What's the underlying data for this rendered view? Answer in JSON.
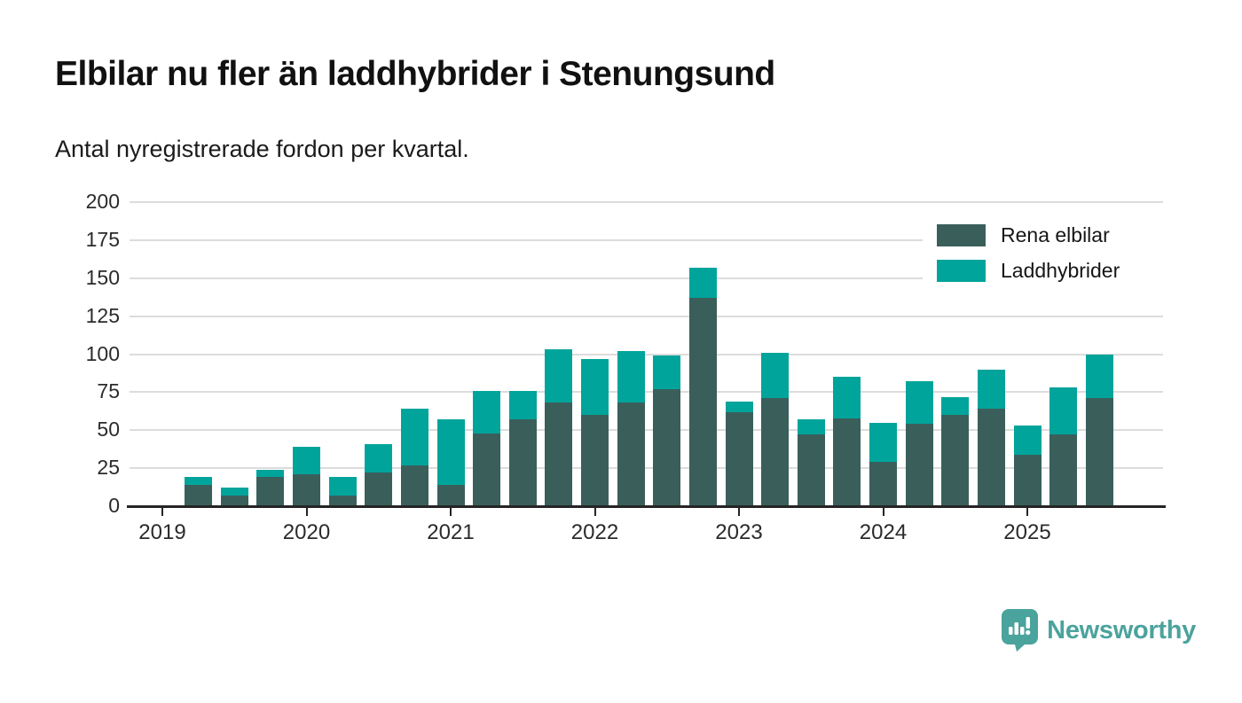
{
  "header": {
    "title": "Elbilar nu fler än laddhybrider i Stenungsund",
    "subtitle": "Antal nyregistrerade fordon per kvartal."
  },
  "legend": {
    "items": [
      {
        "label": "Rena elbilar",
        "color": "#3a5f5b"
      },
      {
        "label": "Laddhybrider",
        "color": "#00a49b"
      }
    ]
  },
  "footer": {
    "brand": "Newsworthy",
    "brand_color": "#4aa39c",
    "logo_icon": "speech-bubble-bar-chart-icon"
  },
  "chart_data": {
    "type": "bar",
    "stacked": true,
    "title": "Elbilar nu fler än laddhybrider i Stenungsund",
    "subtitle": "Antal nyregistrerade fordon per kvartal.",
    "xlabel": "",
    "ylabel": "",
    "ylim": [
      0,
      200
    ],
    "yticks": [
      0,
      25,
      50,
      75,
      100,
      125,
      150,
      175,
      200
    ],
    "xticks": [
      "2019",
      "2020",
      "2021",
      "2022",
      "2023",
      "2024",
      "2025"
    ],
    "grid": true,
    "legend_position": "top-right",
    "categories": [
      "2019 Q2",
      "2019 Q3",
      "2019 Q4",
      "2020 Q1",
      "2020 Q2",
      "2020 Q3",
      "2020 Q4",
      "2021 Q1",
      "2021 Q2",
      "2021 Q3",
      "2021 Q4",
      "2022 Q1",
      "2022 Q2",
      "2022 Q3",
      "2022 Q4",
      "2023 Q1",
      "2023 Q2",
      "2023 Q3",
      "2023 Q4",
      "2024 Q1",
      "2024 Q2",
      "2024 Q3",
      "2024 Q4",
      "2025 Q1",
      "2025 Q2",
      "2025 Q3"
    ],
    "series": [
      {
        "name": "Rena elbilar",
        "color": "#3a5f5b",
        "values": [
          14,
          7,
          19,
          21,
          7,
          22,
          27,
          14,
          48,
          57,
          68,
          60,
          68,
          77,
          137,
          62,
          71,
          47,
          58,
          29,
          54,
          60,
          64,
          34,
          47,
          71
        ]
      },
      {
        "name": "Laddhybrider",
        "color": "#00a49b",
        "values": [
          5,
          5,
          5,
          18,
          12,
          19,
          37,
          43,
          28,
          19,
          35,
          37,
          34,
          22,
          20,
          7,
          30,
          10,
          27,
          26,
          28,
          12,
          26,
          19,
          31,
          29
        ]
      }
    ],
    "totals": [
      19,
      12,
      24,
      39,
      19,
      41,
      64,
      57,
      76,
      76,
      103,
      97,
      102,
      99,
      157,
      69,
      101,
      57,
      85,
      55,
      82,
      72,
      90,
      53,
      78,
      100
    ]
  },
  "axis_colors": {
    "gridline": "#dcdcdc",
    "axis": "#252525",
    "tick_label": "#2b2b2b"
  }
}
